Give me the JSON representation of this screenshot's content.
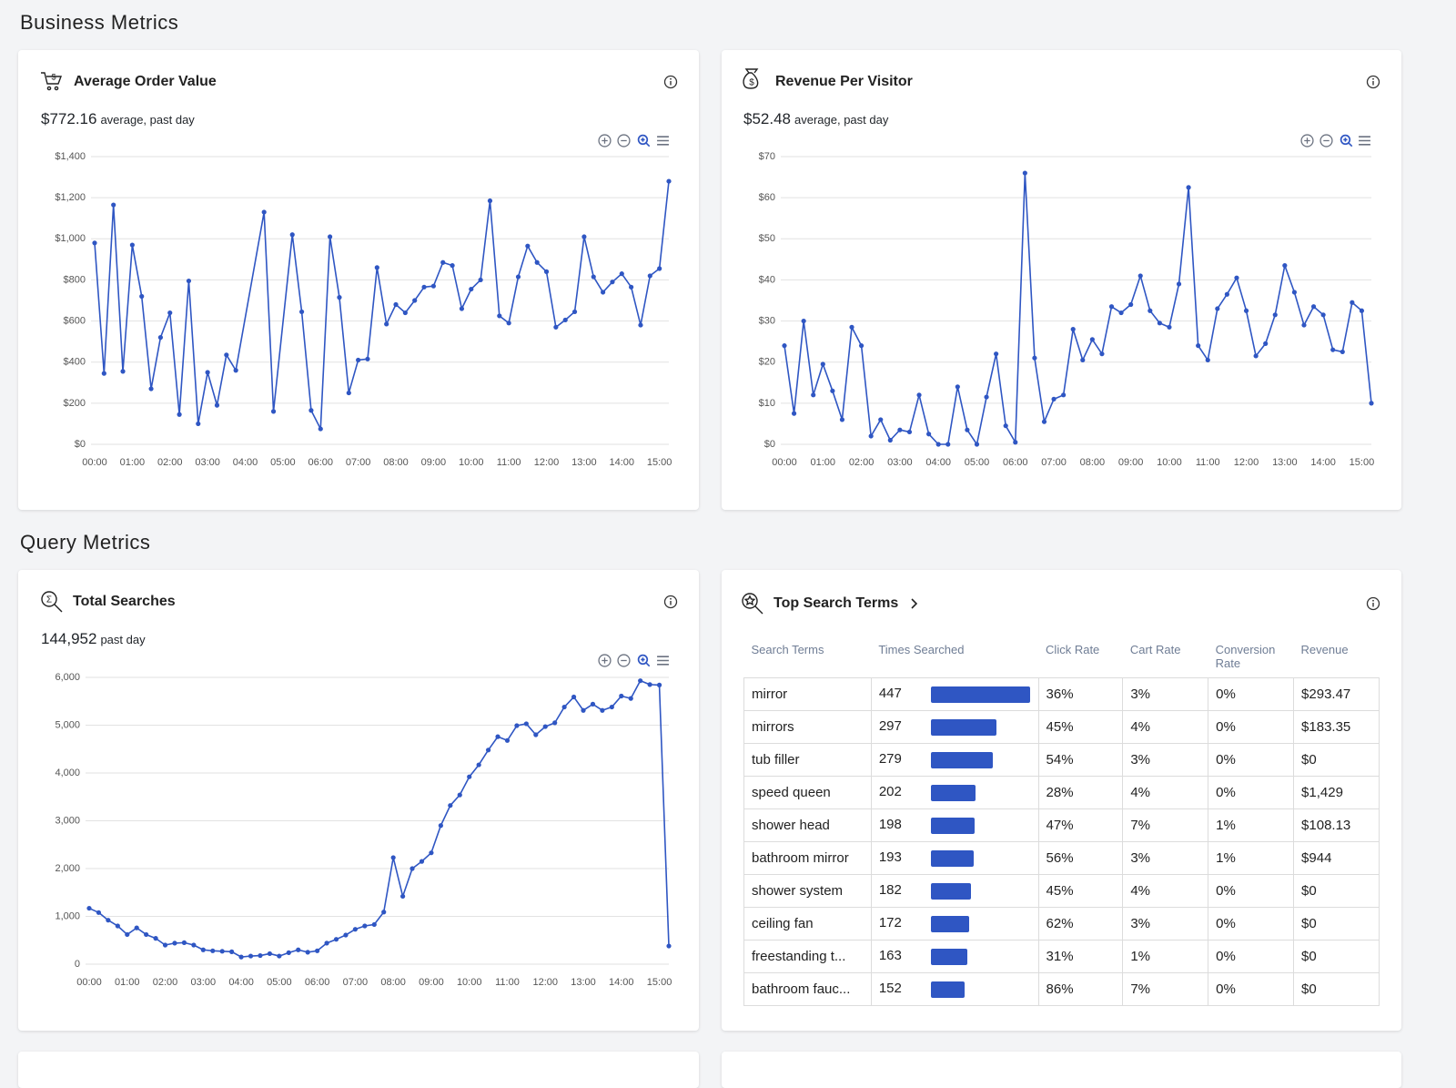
{
  "sections": [
    "Business Metrics",
    "Query Metrics"
  ],
  "chart_data": [
    {
      "type": "line",
      "title": "Average Order Value",
      "headline": "$772.16",
      "headline_note": "average, past day",
      "x": [
        "00:00",
        "00:15",
        "00:30",
        "00:45",
        "01:00",
        "01:15",
        "01:30",
        "01:45",
        "02:00",
        "02:15",
        "02:30",
        "02:45",
        "03:00",
        "03:15",
        "03:30",
        "03:45",
        "04:30",
        "04:45",
        "05:15",
        "05:30",
        "05:45",
        "06:00",
        "06:15",
        "06:30",
        "06:45",
        "07:00",
        "07:15",
        "07:30",
        "07:45",
        "08:00",
        "08:15",
        "08:30",
        "08:45",
        "09:00",
        "09:15",
        "09:30",
        "09:45",
        "10:00",
        "10:15",
        "10:30",
        "10:45",
        "11:00",
        "11:15",
        "11:30",
        "11:45",
        "12:00",
        "12:15",
        "12:30",
        "12:45",
        "13:00",
        "13:15",
        "13:30",
        "13:45",
        "14:00",
        "14:15",
        "14:30",
        "14:45",
        "15:00",
        "15:15"
      ],
      "values": [
        980,
        345,
        1165,
        355,
        970,
        720,
        270,
        520,
        640,
        145,
        795,
        100,
        350,
        190,
        435,
        360,
        1130,
        160,
        1020,
        645,
        165,
        75,
        1010,
        715,
        250,
        410,
        415,
        860,
        585,
        680,
        640,
        700,
        765,
        770,
        885,
        870,
        660,
        755,
        800,
        1185,
        625,
        590,
        815,
        965,
        885,
        840,
        570,
        605,
        645,
        1010,
        815,
        740,
        790,
        830,
        765,
        580,
        820,
        855,
        1280
      ],
      "color": "#2f56c3",
      "xlim": [
        "00:00",
        "15:15"
      ],
      "xticks": [
        "00:00",
        "01:00",
        "02:00",
        "03:00",
        "04:00",
        "05:00",
        "06:00",
        "07:00",
        "08:00",
        "09:00",
        "10:00",
        "11:00",
        "12:00",
        "13:00",
        "14:00",
        "15:00"
      ],
      "ylim": [
        0,
        1400
      ],
      "yticks": [
        {
          "value": 0,
          "label": "$0"
        },
        {
          "value": 200,
          "label": "$200"
        },
        {
          "value": 400,
          "label": "$400"
        },
        {
          "value": 600,
          "label": "$600"
        },
        {
          "value": 800,
          "label": "$800"
        },
        {
          "value": 1000,
          "label": "$1,000"
        },
        {
          "value": 1200,
          "label": "$1,200"
        },
        {
          "value": 1400,
          "label": "$1,400"
        }
      ],
      "grid": true
    },
    {
      "type": "line",
      "title": "Revenue Per Visitor",
      "headline": "$52.48",
      "headline_note": "average, past day",
      "x": [
        "00:00",
        "00:15",
        "00:30",
        "00:45",
        "01:00",
        "01:15",
        "01:30",
        "01:45",
        "02:00",
        "02:15",
        "02:30",
        "02:45",
        "03:00",
        "03:15",
        "03:30",
        "03:45",
        "04:00",
        "04:15",
        "04:30",
        "04:45",
        "05:00",
        "05:15",
        "05:30",
        "05:45",
        "06:00",
        "06:15",
        "06:30",
        "06:45",
        "07:00",
        "07:15",
        "07:30",
        "07:45",
        "08:00",
        "08:15",
        "08:30",
        "08:45",
        "09:00",
        "09:15",
        "09:30",
        "09:45",
        "10:00",
        "10:15",
        "10:30",
        "10:45",
        "11:00",
        "11:15",
        "11:30",
        "11:45",
        "12:00",
        "12:15",
        "12:30",
        "12:45",
        "13:00",
        "13:15",
        "13:30",
        "13:45",
        "14:00",
        "14:15",
        "14:30",
        "14:45",
        "15:00",
        "15:15"
      ],
      "values": [
        24,
        7.5,
        30,
        12,
        19.5,
        13,
        6,
        28.5,
        24,
        2,
        6,
        1,
        3.5,
        3,
        12,
        2.5,
        0,
        0,
        14,
        3.5,
        0,
        11.5,
        22,
        4.5,
        0.5,
        66,
        21,
        5.5,
        11,
        12,
        28,
        20.5,
        25.5,
        22,
        33.5,
        32,
        34,
        41,
        32.5,
        29.5,
        28.5,
        39,
        62.5,
        24,
        20.5,
        33,
        36.5,
        40.5,
        32.5,
        21.5,
        24.5,
        31.5,
        43.5,
        37,
        29,
        33.5,
        31.5,
        23,
        22.5,
        34.5,
        32.5,
        10
      ],
      "color": "#2f56c3",
      "xlim": [
        "00:00",
        "15:15"
      ],
      "xticks": [
        "00:00",
        "01:00",
        "02:00",
        "03:00",
        "04:00",
        "05:00",
        "06:00",
        "07:00",
        "08:00",
        "09:00",
        "10:00",
        "11:00",
        "12:00",
        "13:00",
        "14:00",
        "15:00"
      ],
      "ylim": [
        0,
        70
      ],
      "yticks": [
        {
          "value": 0,
          "label": "$0"
        },
        {
          "value": 10,
          "label": "$10"
        },
        {
          "value": 20,
          "label": "$20"
        },
        {
          "value": 30,
          "label": "$30"
        },
        {
          "value": 40,
          "label": "$40"
        },
        {
          "value": 50,
          "label": "$50"
        },
        {
          "value": 60,
          "label": "$60"
        },
        {
          "value": 70,
          "label": "$70"
        }
      ],
      "grid": true
    },
    {
      "type": "line",
      "title": "Total Searches",
      "headline": "144,952",
      "headline_note": "past day",
      "x": [
        "00:00",
        "00:15",
        "00:30",
        "00:45",
        "01:00",
        "01:15",
        "01:30",
        "01:45",
        "02:00",
        "02:15",
        "02:30",
        "02:45",
        "03:00",
        "03:15",
        "03:30",
        "03:45",
        "04:00",
        "04:15",
        "04:30",
        "04:45",
        "05:00",
        "05:15",
        "05:30",
        "05:45",
        "06:00",
        "06:15",
        "06:30",
        "06:45",
        "07:00",
        "07:15",
        "07:30",
        "07:45",
        "08:00",
        "08:15",
        "08:30",
        "08:45",
        "09:00",
        "09:15",
        "09:30",
        "09:45",
        "10:00",
        "10:15",
        "10:30",
        "10:45",
        "11:00",
        "11:15",
        "11:30",
        "11:45",
        "12:00",
        "12:15",
        "12:30",
        "12:45",
        "13:00",
        "13:15",
        "13:30",
        "13:45",
        "14:00",
        "14:15",
        "14:30",
        "14:45",
        "15:00",
        "15:15"
      ],
      "values": [
        1170,
        1080,
        920,
        800,
        620,
        760,
        620,
        540,
        400,
        440,
        450,
        400,
        300,
        280,
        270,
        260,
        150,
        170,
        180,
        220,
        170,
        240,
        300,
        250,
        280,
        440,
        520,
        610,
        730,
        800,
        830,
        1090,
        2230,
        1420,
        2000,
        2150,
        2330,
        2900,
        3320,
        3540,
        3920,
        4170,
        4480,
        4760,
        4680,
        4990,
        5030,
        4800,
        4970,
        5050,
        5380,
        5590,
        5310,
        5440,
        5310,
        5380,
        5610,
        5560,
        5930,
        5850,
        5840,
        380
      ],
      "color": "#2f56c3",
      "xlim": [
        "00:00",
        "15:15"
      ],
      "xticks": [
        "00:00",
        "01:00",
        "02:00",
        "03:00",
        "04:00",
        "05:00",
        "06:00",
        "07:00",
        "08:00",
        "09:00",
        "10:00",
        "11:00",
        "12:00",
        "13:00",
        "14:00",
        "15:00"
      ],
      "ylim": [
        0,
        6000
      ],
      "yticks": [
        0,
        {
          "value": 1000,
          "label": "1,000"
        },
        {
          "value": 2000,
          "label": "2,000"
        },
        {
          "value": 3000,
          "label": "3,000"
        },
        {
          "value": 4000,
          "label": "4,000"
        },
        {
          "value": 5000,
          "label": "5,000"
        },
        {
          "value": 6000,
          "label": "6,000"
        }
      ],
      "grid": true
    }
  ],
  "table": {
    "title": "Top Search Terms",
    "bar_color": "#2f56c3",
    "columns": [
      "Search Terms",
      "Times Searched",
      "Click Rate",
      "Cart Rate",
      "Conversion Rate",
      "Revenue"
    ],
    "rows": [
      [
        "mirror",
        447,
        "36%",
        "3%",
        "0%",
        "$293.47"
      ],
      [
        "mirrors",
        297,
        "45%",
        "4%",
        "0%",
        "$183.35"
      ],
      [
        "tub filler",
        279,
        "54%",
        "3%",
        "0%",
        "$0"
      ],
      [
        "speed queen",
        202,
        "28%",
        "4%",
        "0%",
        "$1,429"
      ],
      [
        "shower head",
        198,
        "47%",
        "7%",
        "1%",
        "$108.13"
      ],
      [
        "bathroom mirror",
        193,
        "56%",
        "3%",
        "1%",
        "$944"
      ],
      [
        "shower system",
        182,
        "45%",
        "4%",
        "0%",
        "$0"
      ],
      [
        "ceiling fan",
        172,
        "62%",
        "3%",
        "0%",
        "$0"
      ],
      [
        "freestanding t...",
        163,
        "31%",
        "1%",
        "0%",
        "$0"
      ],
      [
        "bathroom fauc...",
        152,
        "86%",
        "7%",
        "0%",
        "$0"
      ]
    ]
  }
}
